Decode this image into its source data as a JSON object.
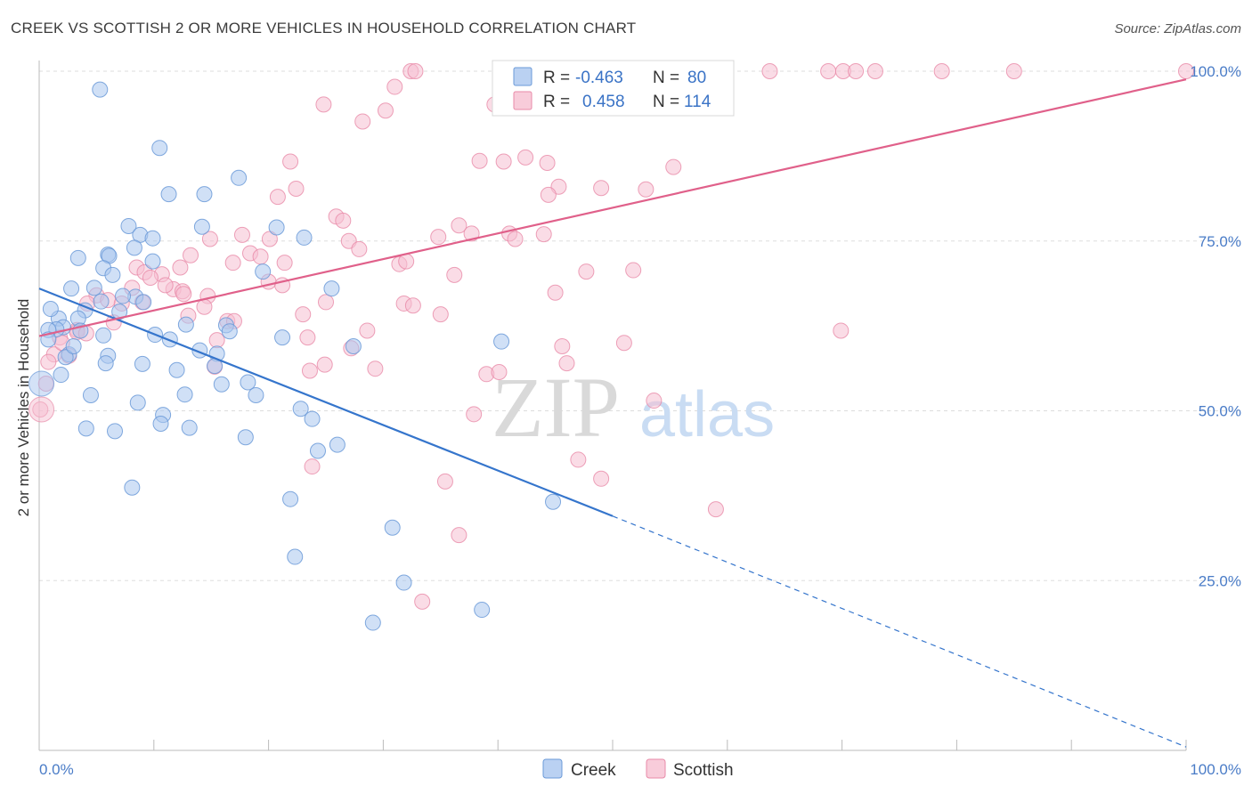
{
  "title": "CREEK VS SCOTTISH 2 OR MORE VEHICLES IN HOUSEHOLD CORRELATION CHART",
  "source": "Source: ZipAtlas.com",
  "watermark": {
    "zip": "ZIP",
    "atlas": "atlas"
  },
  "colors": {
    "creek_fill": "#a9c6ef",
    "creek_stroke": "#6b9ad8",
    "creek_line": "#3575cc",
    "scottish_fill": "#f6bfd1",
    "scottish_stroke": "#e88aa8",
    "scottish_line": "#e0608a",
    "grid": "#dddddd",
    "axis_text": "#4a7cc7"
  },
  "legend": {
    "r_label": "R =",
    "n_label": "N =",
    "creek": {
      "r": "-0.463",
      "n": "80"
    },
    "scottish": {
      "r": "0.458",
      "n": "114"
    }
  },
  "chart_data": {
    "type": "scatter",
    "xlabel": "",
    "ylabel": "2 or more Vehicles in Household",
    "xlim": [
      0,
      100
    ],
    "ylim": [
      0,
      102
    ],
    "x_tick_labels": [
      "0.0%",
      "100.0%"
    ],
    "y_tick_labels": [
      "25.0%",
      "50.0%",
      "75.0%",
      "100.0%"
    ],
    "y_ticks": [
      25,
      50,
      75,
      100
    ],
    "grid": true,
    "legend_position": "top-center",
    "series": [
      {
        "name": "Creek",
        "trend": {
          "x0": 0,
          "y0": 68,
          "x1": 50,
          "y1": 34.5,
          "dashed_to_x": 100,
          "dashed_to_y": 0.5
        },
        "points": [
          [
            5.3,
            97.3
          ],
          [
            10.5,
            88.7
          ],
          [
            17.4,
            84.3
          ],
          [
            11.3,
            81.9
          ],
          [
            14.4,
            81.9
          ],
          [
            7.8,
            77.2
          ],
          [
            14.2,
            77.1
          ],
          [
            20.7,
            77.0
          ],
          [
            8.8,
            75.9
          ],
          [
            9.9,
            75.4
          ],
          [
            23.1,
            75.5
          ],
          [
            8.3,
            74.0
          ],
          [
            3.4,
            72.5
          ],
          [
            6.0,
            73.0
          ],
          [
            6.1,
            72.8
          ],
          [
            9.9,
            72.0
          ],
          [
            5.6,
            71.0
          ],
          [
            6.4,
            70.0
          ],
          [
            2.8,
            68.0
          ],
          [
            4.8,
            68.1
          ],
          [
            25.5,
            68.0
          ],
          [
            5.4,
            66.1
          ],
          [
            8.4,
            66.8
          ],
          [
            9.1,
            66.0
          ],
          [
            7.3,
            66.9
          ],
          [
            4.0,
            64.8
          ],
          [
            7.0,
            64.6
          ],
          [
            1.7,
            63.6
          ],
          [
            3.4,
            63.6
          ],
          [
            2.1,
            62.3
          ],
          [
            1.5,
            62.0
          ],
          [
            0.8,
            61.9
          ],
          [
            3.6,
            61.8
          ],
          [
            12.8,
            62.7
          ],
          [
            16.3,
            62.6
          ],
          [
            16.6,
            61.7
          ],
          [
            5.6,
            61.1
          ],
          [
            10.1,
            61.2
          ],
          [
            11.4,
            60.5
          ],
          [
            21.2,
            60.8
          ],
          [
            40.3,
            60.2
          ],
          [
            0.8,
            60.5
          ],
          [
            27.4,
            59.5
          ],
          [
            2.6,
            58.3
          ],
          [
            2.3,
            57.9
          ],
          [
            6.0,
            58.1
          ],
          [
            14.0,
            58.9
          ],
          [
            15.5,
            58.4
          ],
          [
            5.8,
            57.0
          ],
          [
            9.0,
            56.9
          ],
          [
            15.3,
            56.6
          ],
          [
            1.9,
            55.3
          ],
          [
            18.2,
            54.2
          ],
          [
            15.9,
            53.9
          ],
          [
            4.5,
            52.3
          ],
          [
            12.7,
            52.4
          ],
          [
            18.9,
            52.3
          ],
          [
            8.6,
            51.2
          ],
          [
            22.8,
            50.3
          ],
          [
            10.8,
            49.4
          ],
          [
            23.8,
            48.8
          ],
          [
            10.6,
            48.1
          ],
          [
            4.1,
            47.4
          ],
          [
            13.1,
            47.5
          ],
          [
            6.6,
            47.0
          ],
          [
            18.0,
            46.1
          ],
          [
            24.3,
            44.1
          ],
          [
            8.1,
            38.7
          ],
          [
            21.9,
            37.0
          ],
          [
            44.8,
            36.6
          ],
          [
            30.8,
            32.8
          ],
          [
            22.3,
            28.5
          ],
          [
            31.8,
            24.7
          ],
          [
            38.6,
            20.7
          ],
          [
            29.1,
            18.8
          ],
          [
            1.0,
            65.0
          ],
          [
            3.0,
            59.5
          ],
          [
            12.0,
            56.0
          ],
          [
            19.5,
            70.5
          ],
          [
            26.0,
            45.0
          ]
        ]
      },
      {
        "name": "Scottish",
        "trend": {
          "x0": 0,
          "y0": 61,
          "x1": 100,
          "y1": 98.8
        },
        "points": [
          [
            32.4,
            100
          ],
          [
            32.8,
            100
          ],
          [
            56.8,
            100
          ],
          [
            57.2,
            100
          ],
          [
            63.7,
            100
          ],
          [
            68.8,
            100
          ],
          [
            70.1,
            100
          ],
          [
            71.2,
            100
          ],
          [
            72.9,
            100
          ],
          [
            78.7,
            100
          ],
          [
            85.0,
            100
          ],
          [
            100,
            100
          ],
          [
            31.0,
            97.7
          ],
          [
            24.8,
            95.1
          ],
          [
            30.2,
            94.2
          ],
          [
            28.2,
            92.6
          ],
          [
            21.9,
            86.7
          ],
          [
            38.4,
            86.8
          ],
          [
            40.5,
            86.7
          ],
          [
            42.4,
            87.3
          ],
          [
            44.3,
            86.5
          ],
          [
            55.3,
            85.9
          ],
          [
            45.3,
            83.0
          ],
          [
            49.0,
            82.8
          ],
          [
            52.9,
            82.6
          ],
          [
            44.4,
            81.8
          ],
          [
            22.4,
            82.7
          ],
          [
            20.8,
            81.5
          ],
          [
            25.9,
            78.6
          ],
          [
            26.5,
            78.0
          ],
          [
            36.6,
            77.3
          ],
          [
            37.7,
            76.1
          ],
          [
            41.0,
            76.1
          ],
          [
            41.5,
            75.3
          ],
          [
            34.8,
            75.6
          ],
          [
            14.9,
            75.3
          ],
          [
            17.7,
            75.9
          ],
          [
            20.1,
            75.3
          ],
          [
            27.0,
            75.0
          ],
          [
            27.9,
            73.8
          ],
          [
            18.4,
            73.2
          ],
          [
            13.2,
            72.9
          ],
          [
            16.9,
            71.8
          ],
          [
            19.3,
            72.7
          ],
          [
            21.4,
            71.8
          ],
          [
            31.4,
            71.6
          ],
          [
            8.5,
            71.1
          ],
          [
            12.3,
            71.1
          ],
          [
            9.2,
            70.4
          ],
          [
            10.7,
            70.1
          ],
          [
            9.7,
            69.6
          ],
          [
            20.0,
            69.0
          ],
          [
            21.2,
            68.5
          ],
          [
            36.2,
            70.0
          ],
          [
            47.7,
            70.5
          ],
          [
            51.8,
            70.7
          ],
          [
            8.1,
            68.1
          ],
          [
            11.7,
            67.9
          ],
          [
            12.5,
            67.6
          ],
          [
            14.7,
            66.9
          ],
          [
            5.0,
            67.0
          ],
          [
            6.0,
            66.3
          ],
          [
            12.6,
            67.2
          ],
          [
            45.0,
            67.4
          ],
          [
            4.2,
            65.8
          ],
          [
            7.2,
            65.8
          ],
          [
            14.4,
            65.3
          ],
          [
            23.0,
            64.2
          ],
          [
            31.8,
            65.8
          ],
          [
            32.6,
            65.5
          ],
          [
            35.0,
            64.2
          ],
          [
            16.4,
            63.2
          ],
          [
            17.0,
            63.2
          ],
          [
            3.3,
            61.9
          ],
          [
            28.6,
            61.8
          ],
          [
            69.9,
            61.8
          ],
          [
            3.3,
            61.6
          ],
          [
            4.1,
            61.4
          ],
          [
            1.8,
            60.8
          ],
          [
            23.4,
            60.8
          ],
          [
            15.5,
            60.4
          ],
          [
            45.6,
            59.5
          ],
          [
            27.2,
            59.2
          ],
          [
            1.3,
            58.3
          ],
          [
            2.6,
            58.1
          ],
          [
            0.8,
            57.2
          ],
          [
            24.9,
            56.8
          ],
          [
            29.3,
            56.2
          ],
          [
            15.3,
            56.5
          ],
          [
            23.6,
            55.9
          ],
          [
            39.0,
            55.4
          ],
          [
            40.1,
            55.7
          ],
          [
            53.6,
            51.5
          ],
          [
            0.6,
            54.0
          ],
          [
            0.1,
            50.2
          ],
          [
            37.9,
            49.5
          ],
          [
            23.8,
            41.8
          ],
          [
            47.0,
            42.8
          ],
          [
            49.0,
            40.0
          ],
          [
            35.4,
            39.6
          ],
          [
            59.0,
            35.5
          ],
          [
            36.6,
            31.7
          ],
          [
            33.4,
            21.9
          ],
          [
            39.7,
            95.1
          ],
          [
            32.0,
            72.0
          ],
          [
            44.0,
            76.0
          ],
          [
            9.0,
            66.0
          ],
          [
            6.5,
            63.0
          ],
          [
            2.0,
            60.0
          ],
          [
            11.0,
            68.5
          ],
          [
            13.0,
            64.0
          ],
          [
            25.0,
            66.0
          ],
          [
            46.0,
            57.0
          ],
          [
            51.0,
            60.0
          ]
        ]
      }
    ]
  },
  "bottom_legend": {
    "creek": "Creek",
    "scottish": "Scottish"
  }
}
